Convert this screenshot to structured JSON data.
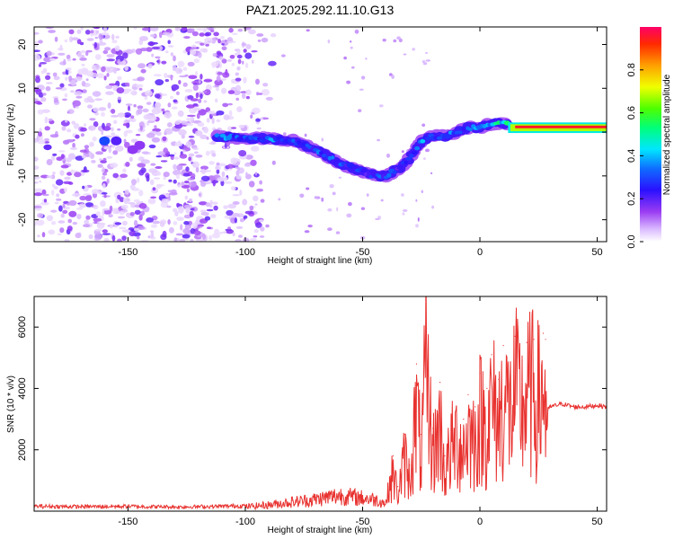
{
  "title": "PAZ1.2025.292.11.10.G13",
  "chart_data": [
    {
      "type": "heatmap",
      "xlabel": "Height of straight line (km)",
      "ylabel": "Frequency (Hz)",
      "xlim": [
        -190,
        54
      ],
      "ylim": [
        -25,
        24
      ],
      "xticks": [
        -150,
        -100,
        -50,
        0,
        50
      ],
      "yticks": [
        -20,
        -10,
        0,
        10,
        20
      ],
      "colorbar": {
        "label": "Normalized spectral amplitude",
        "range": [
          0,
          1
        ],
        "ticks": [
          0.0,
          0.2,
          0.4,
          0.6,
          0.8
        ]
      },
      "ridge": {
        "description_points_height_km": [
          -110,
          -100,
          -90,
          -80,
          -70,
          -60,
          -50,
          -45,
          -40,
          -35,
          -30,
          -25,
          -20,
          -15,
          -10,
          -5,
          0,
          5,
          10,
          15,
          25,
          35,
          45,
          54
        ],
        "frequency_hz": [
          -1,
          -1.5,
          -1.5,
          -2,
          -4,
          -7,
          -9,
          -10,
          -10,
          -8.5,
          -6,
          -2,
          -1,
          -1,
          0,
          1,
          1,
          2,
          2,
          1,
          1,
          1,
          1,
          1
        ],
        "amplitude": [
          0.35,
          0.3,
          0.35,
          0.3,
          0.3,
          0.3,
          0.25,
          0.3,
          0.3,
          0.25,
          0.25,
          0.35,
          0.3,
          0.3,
          0.35,
          0.3,
          0.35,
          0.4,
          0.5,
          0.95,
          0.95,
          0.95,
          0.9,
          0.9
        ]
      }
    },
    {
      "type": "line",
      "xlabel": "Height of straight line (km)",
      "ylabel": "SNR (10 * v/v)",
      "xlim": [
        -190,
        54
      ],
      "ylim": [
        0,
        7000
      ],
      "xticks": [
        -150,
        -100,
        -50,
        0,
        50
      ],
      "yticks": [
        2000,
        4000,
        6000
      ],
      "color": "#e8322f",
      "series": [
        {
          "name": "SNR",
          "x": [
            -190,
            -170,
            -150,
            -130,
            -110,
            -100,
            -90,
            -80,
            -70,
            -60,
            -50,
            -45,
            -40,
            -37,
            -35,
            -32,
            -30,
            -27,
            -25,
            -23,
            -20,
            -17,
            -15,
            -12,
            -10,
            -7,
            -5,
            -2,
            0,
            3,
            5,
            8,
            10,
            13,
            15,
            18,
            20,
            23,
            25,
            27,
            28,
            29,
            30,
            35,
            40,
            45,
            50,
            54
          ],
          "values": [
            150,
            140,
            150,
            130,
            150,
            170,
            240,
            350,
            450,
            600,
            500,
            450,
            300,
            1800,
            800,
            2500,
            1500,
            4800,
            2500,
            6600,
            2700,
            4200,
            1800,
            3000,
            3400,
            3000,
            3800,
            3400,
            4500,
            4000,
            5100,
            4300,
            5400,
            4700,
            5700,
            4900,
            5500,
            5600,
            5200,
            5800,
            5600,
            3300,
            3400,
            3500,
            3400,
            3400,
            3450,
            3400
          ]
        }
      ]
    }
  ]
}
